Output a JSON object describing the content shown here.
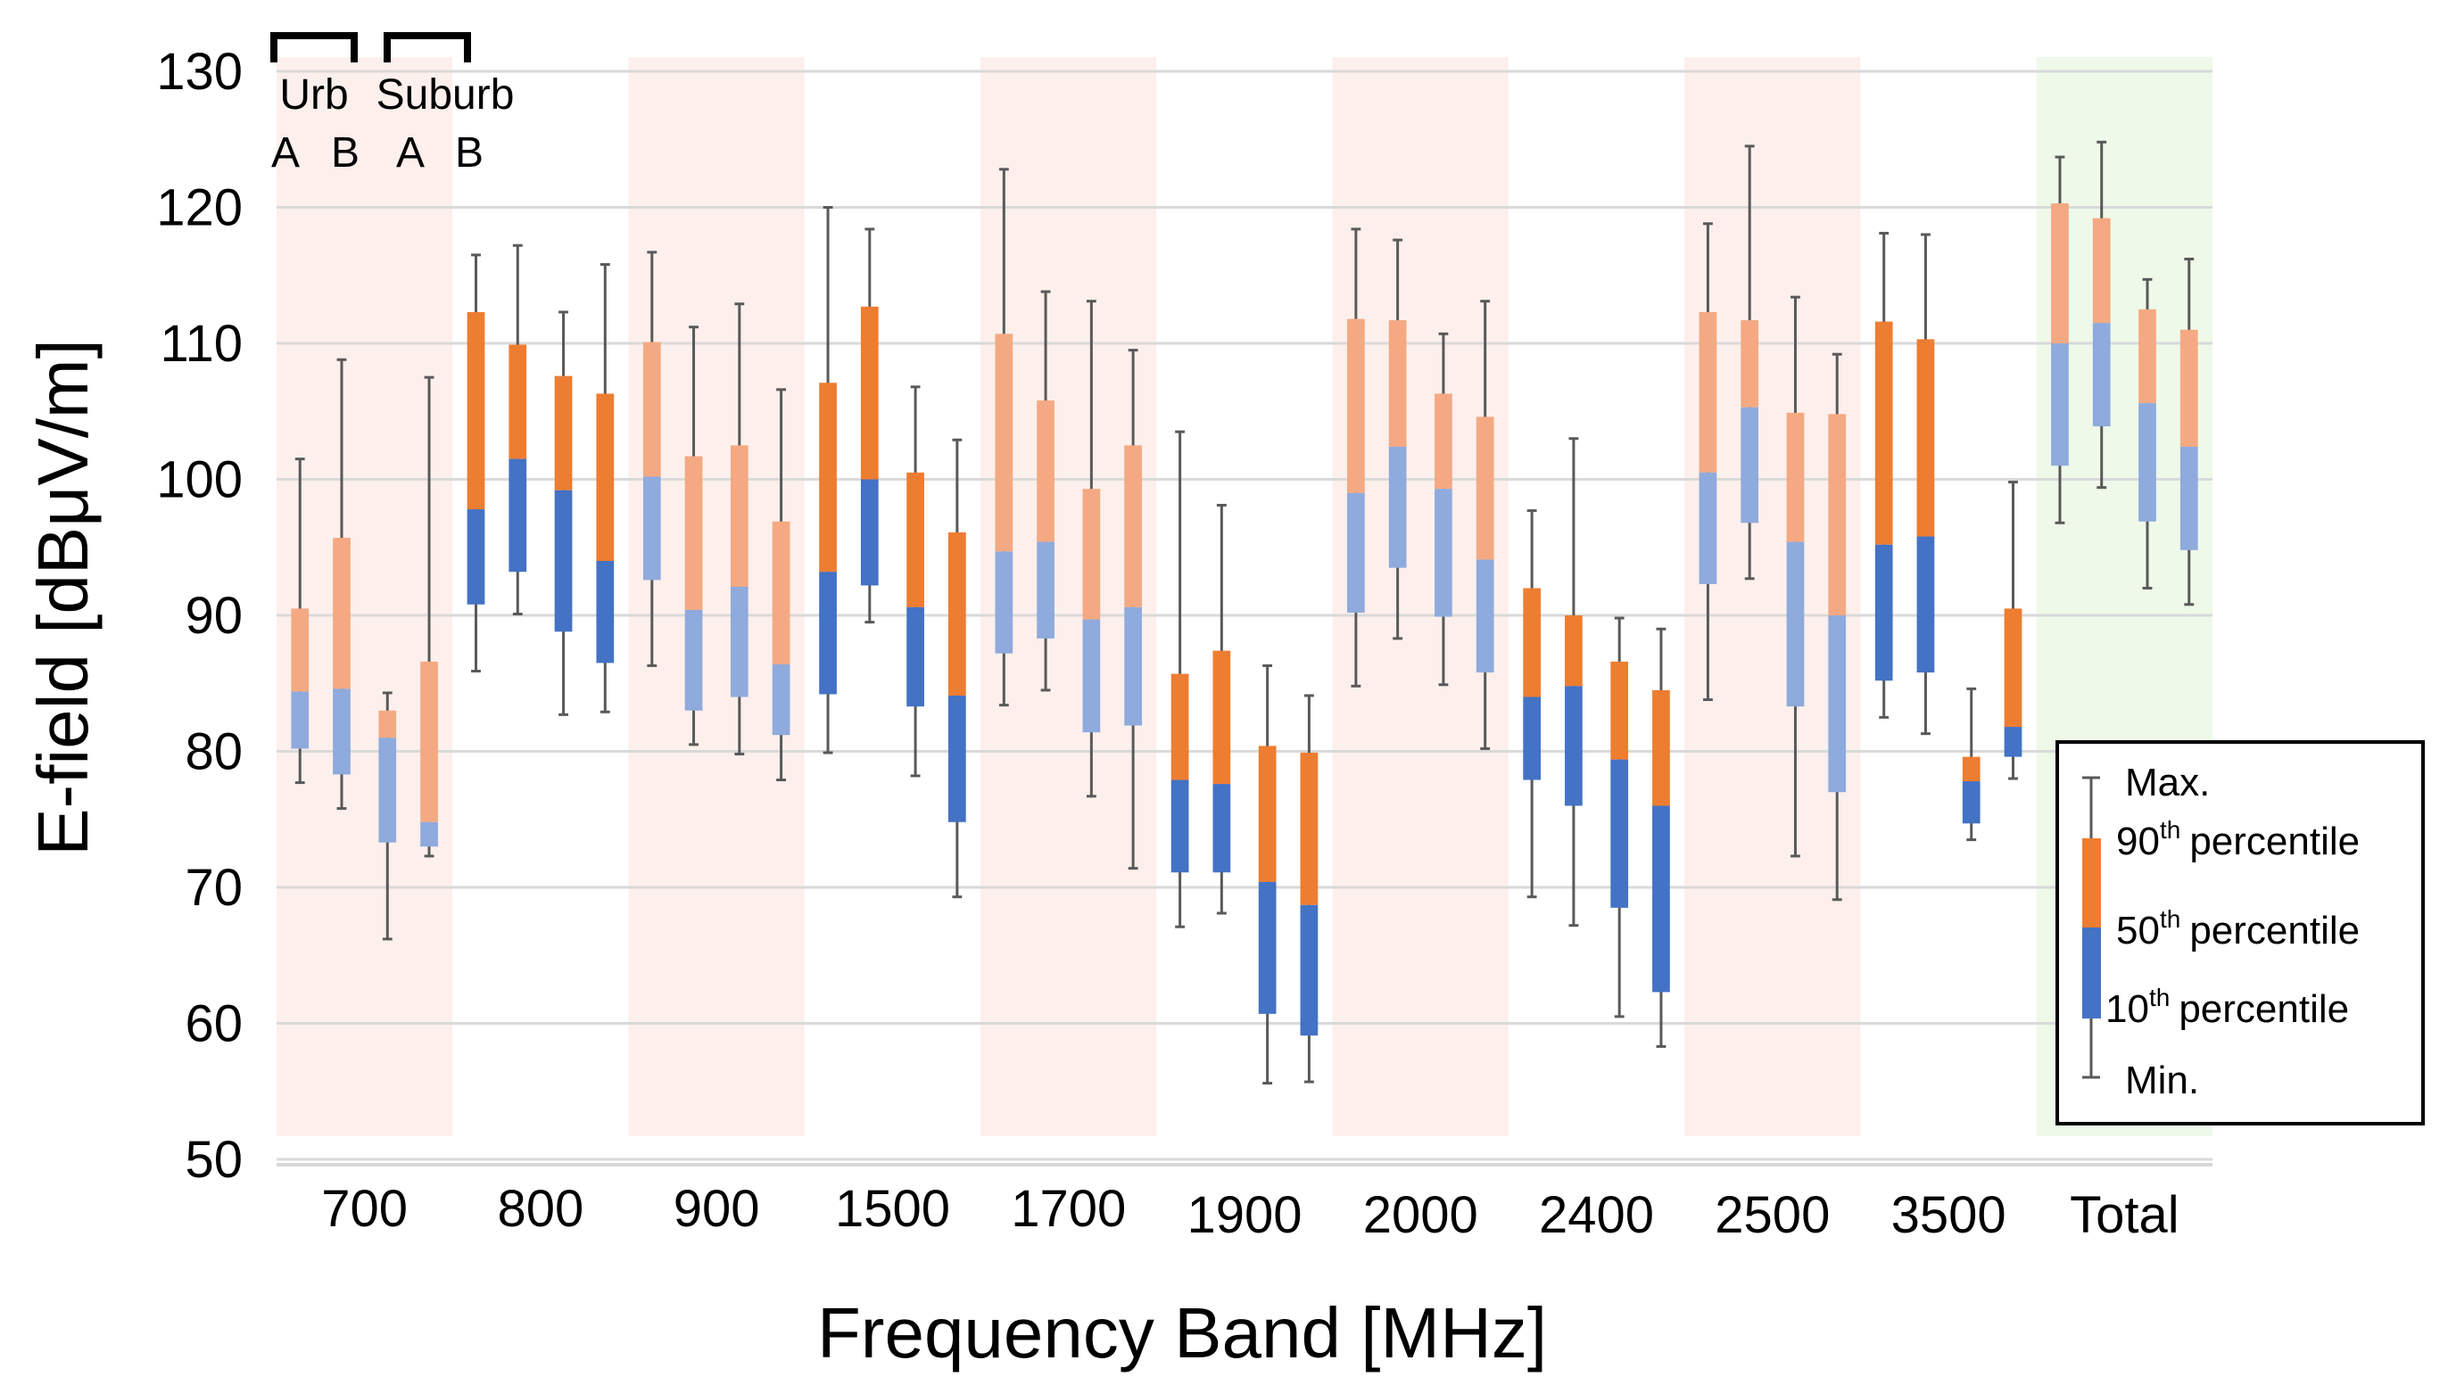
{
  "chart_data": {
    "type": "boxplot",
    "title": "",
    "xlabel": "Frequency Band [MHz]",
    "ylabel_pre": "E-field [dB",
    "ylabel_mu": "μ",
    "ylabel_post": "V/m]",
    "ylim": [
      50,
      130
    ],
    "yticks": [
      "50",
      "60",
      "70",
      "80",
      "90",
      "100",
      "110",
      "120",
      "130"
    ],
    "grid": true,
    "categories": [
      "700",
      "800",
      "900",
      "1500",
      "1700",
      "1900",
      "2000",
      "2400",
      "2500",
      "3500",
      "Total"
    ],
    "series_names": [
      "Urb A",
      "Urb B",
      "Suburb A",
      "Suburb B"
    ],
    "annotation": {
      "group1": "Urb",
      "group2": "Suburb",
      "sub_a1": "A",
      "sub_b1": "B",
      "sub_a2": "A",
      "sub_b2": "B"
    },
    "legend": {
      "position": "bottom-right",
      "max_label": "Max.",
      "p90_num": "90",
      "p50_num": "50",
      "p10_num": "10",
      "ordinal_suffix": "th",
      "percentile_word": "percentile",
      "min_label": "Min."
    },
    "colors": {
      "upper_dark": "#ED7D31",
      "upper_light": "#F4A982",
      "lower_dark": "#4472C4",
      "lower_light": "#8FAADC",
      "whisker": "#595959",
      "grid": "#D9D9D9",
      "shade_band": "#FDF0EC",
      "shade_total": "#EEF9EA"
    },
    "shaded_bands": [
      "700",
      "900",
      "1700",
      "2000",
      "2500"
    ],
    "total_band": "Total",
    "light_bands": [
      "700",
      "900",
      "1700",
      "2000",
      "2500",
      "Total"
    ],
    "boxes": [
      {
        "band": "700",
        "values": [
          {
            "min": 77.7,
            "p10": 80.2,
            "p50": 84.4,
            "p90": 90.5,
            "max": 101.5
          },
          {
            "min": 75.8,
            "p10": 78.3,
            "p50": 84.6,
            "p90": 95.7,
            "max": 108.8
          },
          {
            "min": 66.2,
            "p10": 73.3,
            "p50": 81.0,
            "p90": 83.0,
            "max": 84.3
          },
          {
            "min": 72.3,
            "p10": 73.0,
            "p50": 74.8,
            "p90": 86.6,
            "max": 107.5
          }
        ]
      },
      {
        "band": "800",
        "values": [
          {
            "min": 85.9,
            "p10": 90.8,
            "p50": 97.8,
            "p90": 112.3,
            "max": 116.5
          },
          {
            "min": 90.1,
            "p10": 93.2,
            "p50": 101.5,
            "p90": 109.9,
            "max": 117.2
          },
          {
            "min": 82.7,
            "p10": 88.8,
            "p50": 99.2,
            "p90": 107.6,
            "max": 112.3
          },
          {
            "min": 82.9,
            "p10": 86.5,
            "p50": 94.0,
            "p90": 106.3,
            "max": 115.8
          }
        ]
      },
      {
        "band": "900",
        "values": [
          {
            "min": 86.3,
            "p10": 92.6,
            "p50": 100.2,
            "p90": 110.1,
            "max": 116.7
          },
          {
            "min": 80.5,
            "p10": 83.0,
            "p50": 90.4,
            "p90": 101.7,
            "max": 111.2
          },
          {
            "min": 79.8,
            "p10": 84.0,
            "p50": 92.1,
            "p90": 102.5,
            "max": 112.9
          },
          {
            "min": 77.9,
            "p10": 81.2,
            "p50": 86.4,
            "p90": 96.9,
            "max": 106.6
          }
        ]
      },
      {
        "band": "1500",
        "values": [
          {
            "min": 79.9,
            "p10": 84.2,
            "p50": 93.2,
            "p90": 107.1,
            "max": 120.0
          },
          {
            "min": 89.5,
            "p10": 92.2,
            "p50": 100.0,
            "p90": 112.7,
            "max": 118.4
          },
          {
            "min": 78.2,
            "p10": 83.3,
            "p50": 90.6,
            "p90": 100.5,
            "max": 106.8
          },
          {
            "min": 69.3,
            "p10": 74.8,
            "p50": 84.1,
            "p90": 96.1,
            "max": 102.9
          }
        ]
      },
      {
        "band": "1700",
        "values": [
          {
            "min": 83.4,
            "p10": 87.2,
            "p50": 94.7,
            "p90": 110.7,
            "max": 122.8
          },
          {
            "min": 84.5,
            "p10": 88.3,
            "p50": 95.4,
            "p90": 105.8,
            "max": 113.8
          },
          {
            "min": 76.7,
            "p10": 81.4,
            "p50": 89.7,
            "p90": 99.3,
            "max": 113.1
          },
          {
            "min": 71.4,
            "p10": 81.9,
            "p50": 90.6,
            "p90": 102.5,
            "max": 109.5
          }
        ]
      },
      {
        "band": "1900",
        "values": [
          {
            "min": 67.1,
            "p10": 71.1,
            "p50": 77.9,
            "p90": 85.7,
            "max": 103.5
          },
          {
            "min": 68.1,
            "p10": 71.1,
            "p50": 77.6,
            "p90": 87.4,
            "max": 98.1
          },
          {
            "min": 55.6,
            "p10": 60.7,
            "p50": 70.4,
            "p90": 80.4,
            "max": 86.3
          },
          {
            "min": 55.7,
            "p10": 59.1,
            "p50": 68.7,
            "p90": 79.9,
            "max": 84.1
          }
        ]
      },
      {
        "band": "2000",
        "values": [
          {
            "min": 84.8,
            "p10": 90.2,
            "p50": 99.0,
            "p90": 111.8,
            "max": 118.4
          },
          {
            "min": 88.3,
            "p10": 93.5,
            "p50": 102.4,
            "p90": 111.7,
            "max": 117.6
          },
          {
            "min": 84.9,
            "p10": 89.9,
            "p50": 99.3,
            "p90": 106.3,
            "max": 110.7
          },
          {
            "min": 80.2,
            "p10": 85.8,
            "p50": 94.1,
            "p90": 104.6,
            "max": 113.1
          }
        ]
      },
      {
        "band": "2400",
        "values": [
          {
            "min": 69.3,
            "p10": 77.9,
            "p50": 84.0,
            "p90": 92.0,
            "max": 97.7
          },
          {
            "min": 67.2,
            "p10": 76.0,
            "p50": 84.8,
            "p90": 90.0,
            "max": 103.0
          },
          {
            "min": 60.5,
            "p10": 68.5,
            "p50": 79.4,
            "p90": 86.6,
            "max": 89.8
          },
          {
            "min": 58.3,
            "p10": 62.3,
            "p50": 76.0,
            "p90": 84.5,
            "max": 89.0
          }
        ]
      },
      {
        "band": "2500",
        "values": [
          {
            "min": 83.8,
            "p10": 92.3,
            "p50": 100.5,
            "p90": 112.3,
            "max": 118.8
          },
          {
            "min": 92.7,
            "p10": 96.8,
            "p50": 105.3,
            "p90": 111.7,
            "max": 124.5
          },
          {
            "min": 72.3,
            "p10": 83.3,
            "p50": 95.4,
            "p90": 104.9,
            "max": 113.4
          },
          {
            "min": 69.1,
            "p10": 77.0,
            "p50": 90.0,
            "p90": 104.8,
            "max": 109.2
          }
        ]
      },
      {
        "band": "3500",
        "values": [
          {
            "min": 82.5,
            "p10": 85.2,
            "p50": 95.2,
            "p90": 111.6,
            "max": 118.1
          },
          {
            "min": 81.3,
            "p10": 85.8,
            "p50": 95.8,
            "p90": 110.3,
            "max": 118.0
          },
          {
            "min": 73.5,
            "p10": 74.7,
            "p50": 77.8,
            "p90": 79.6,
            "max": 84.6
          },
          {
            "min": 78.0,
            "p10": 79.6,
            "p50": 81.8,
            "p90": 90.5,
            "max": 99.8
          }
        ]
      },
      {
        "band": "Total",
        "values": [
          {
            "min": 96.8,
            "p10": 101.0,
            "p50": 110.0,
            "p90": 120.3,
            "max": 123.7
          },
          {
            "min": 99.4,
            "p10": 103.9,
            "p50": 111.5,
            "p90": 119.2,
            "max": 124.8
          },
          {
            "min": 92.0,
            "p10": 96.9,
            "p50": 105.6,
            "p90": 112.5,
            "max": 114.7
          },
          {
            "min": 90.8,
            "p10": 94.8,
            "p50": 102.4,
            "p90": 111.0,
            "max": 116.2
          }
        ]
      }
    ]
  }
}
